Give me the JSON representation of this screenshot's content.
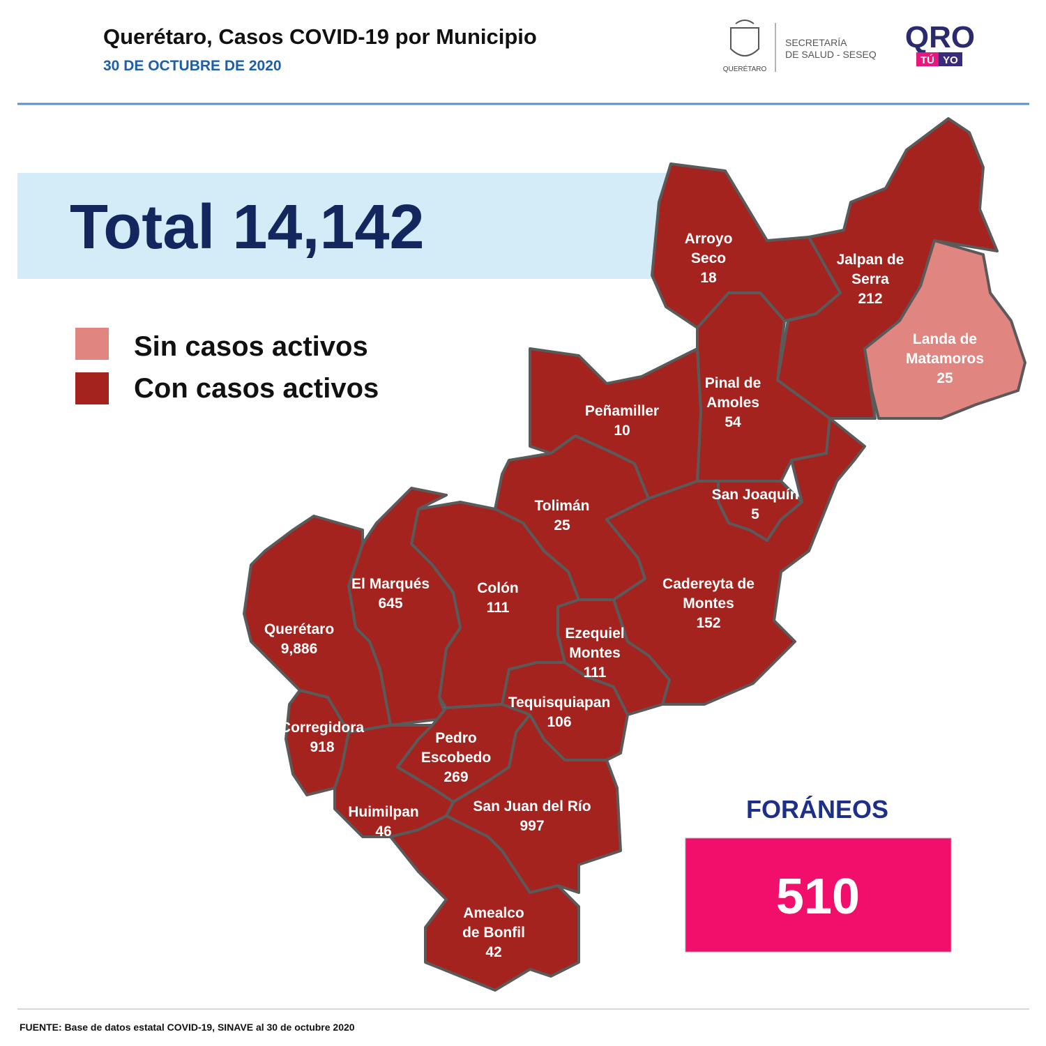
{
  "header": {
    "title": "Querétaro, Casos COVID-19 por Municipio",
    "date": "30 DE OCTUBRE DE 2020",
    "state_logo_text": "QUERÉTARO",
    "secretaria_lines": [
      "SECRETARÍA",
      "DE SALUD - SESEQ"
    ],
    "qro_logo": {
      "main": "QRO",
      "left": "TÚ",
      "right": "YO"
    }
  },
  "total": {
    "label": "Total",
    "value": "14,142"
  },
  "legend": [
    {
      "label": "Sin casos activos",
      "color": "#e0857f"
    },
    {
      "label": "Con casos activos",
      "color": "#a5231e"
    }
  ],
  "municipalities": [
    {
      "name_lines": [
        "Arroyo",
        "Seco"
      ],
      "cases": "18",
      "active": true
    },
    {
      "name_lines": [
        "Jalpan de",
        "Serra"
      ],
      "cases": "212",
      "active": true
    },
    {
      "name_lines": [
        "Landa de",
        "Matamoros"
      ],
      "cases": "25",
      "active": false
    },
    {
      "name_lines": [
        "Pinal de",
        "Amoles"
      ],
      "cases": "54",
      "active": true
    },
    {
      "name_lines": [
        "Peñamiller"
      ],
      "cases": "10",
      "active": true
    },
    {
      "name_lines": [
        "Tolimán"
      ],
      "cases": "25",
      "active": true
    },
    {
      "name_lines": [
        "San Joaquín"
      ],
      "cases": "5",
      "active": true
    },
    {
      "name_lines": [
        "Cadereyta de",
        "Montes"
      ],
      "cases": "152",
      "active": true
    },
    {
      "name_lines": [
        "Ezequiel",
        "Montes"
      ],
      "cases": "111",
      "active": true
    },
    {
      "name_lines": [
        "Colón"
      ],
      "cases": "111",
      "active": true
    },
    {
      "name_lines": [
        "El  Marqués"
      ],
      "cases": "645",
      "active": true
    },
    {
      "name_lines": [
        "Querétaro"
      ],
      "cases": "9,886",
      "active": true
    },
    {
      "name_lines": [
        "Corregidora"
      ],
      "cases": "918",
      "active": true
    },
    {
      "name_lines": [
        "Tequisquiapan"
      ],
      "cases": "106",
      "active": true
    },
    {
      "name_lines": [
        "Pedro",
        "Escobedo"
      ],
      "cases": "269",
      "active": true
    },
    {
      "name_lines": [
        "San Juan del Río"
      ],
      "cases": "997",
      "active": true
    },
    {
      "name_lines": [
        "Huimilpan"
      ],
      "cases": "46",
      "active": true
    },
    {
      "name_lines": [
        "Amealco",
        "de Bonfil"
      ],
      "cases": "42",
      "active": true
    }
  ],
  "foraneos": {
    "label": "FORÁNEOS",
    "value": "510"
  },
  "footer": "FUENTE: Base de datos estatal COVID-19, SINAVE al 30 de octubre  2020"
}
